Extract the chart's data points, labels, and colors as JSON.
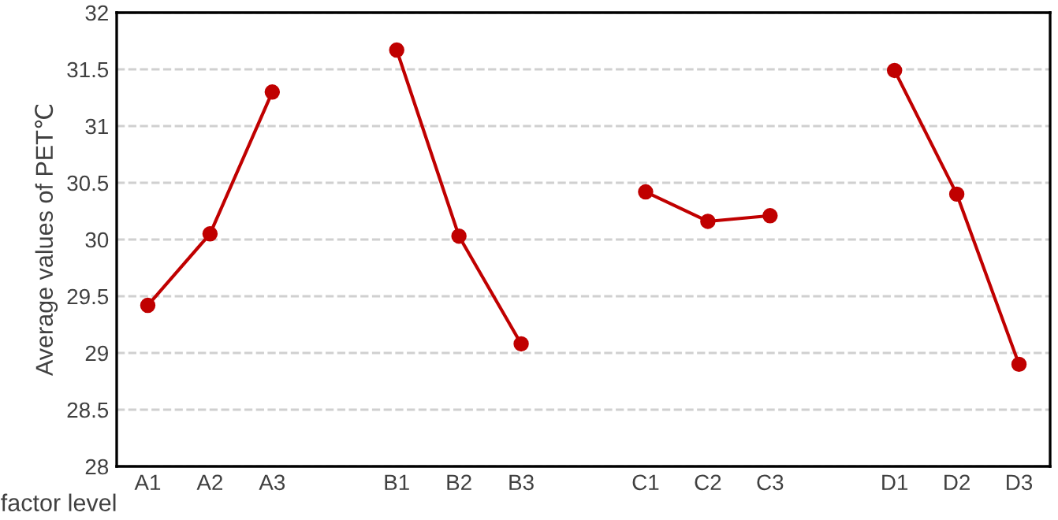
{
  "chart_data": {
    "type": "line",
    "xlabel": "factor level",
    "ylabel": "Average values of PET℃",
    "categories": [
      "A1",
      "A2",
      "A3",
      null,
      "B1",
      "B2",
      "B3",
      null,
      "C1",
      "C2",
      "C3",
      null,
      "D1",
      "D2",
      "D3"
    ],
    "series": [
      {
        "color": "#c00000",
        "values": [
          29.42,
          30.05,
          31.3,
          null,
          31.67,
          30.03,
          29.08,
          null,
          30.42,
          30.16,
          30.21,
          null,
          31.49,
          30.4,
          28.9
        ]
      }
    ],
    "ylim": [
      28,
      32
    ],
    "yticks": [
      28,
      28.5,
      29,
      29.5,
      30,
      30.5,
      31,
      31.5,
      32
    ],
    "grid": "y",
    "marker": "circle",
    "line_style": "solid"
  }
}
